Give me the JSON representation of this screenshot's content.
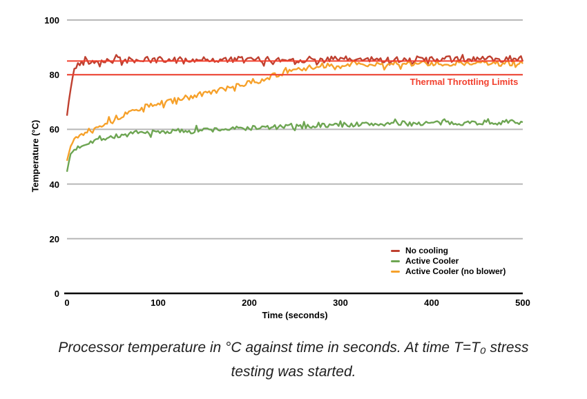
{
  "chart_data": {
    "type": "line",
    "title": "",
    "xlabel": "Time (seconds)",
    "ylabel": "Temperature (°C)",
    "xlim": [
      0,
      500
    ],
    "ylim": [
      0,
      100
    ],
    "x_ticks": [
      0,
      100,
      200,
      300,
      400,
      500
    ],
    "y_ticks": [
      0,
      20,
      40,
      60,
      80,
      100
    ],
    "grid": "horizontal",
    "legend_position": "inside-bottom-right",
    "series": [
      {
        "name": "No cooling",
        "color": "#bf4030",
        "noise": 1.2,
        "points": [
          [
            0,
            65
          ],
          [
            2,
            70
          ],
          [
            4,
            75
          ],
          [
            6,
            79
          ],
          [
            8,
            81.5
          ],
          [
            10,
            83
          ],
          [
            13,
            84
          ],
          [
            16,
            84.5
          ],
          [
            20,
            85
          ],
          [
            30,
            85
          ],
          [
            50,
            85.3
          ],
          [
            100,
            85.4
          ],
          [
            150,
            85.5
          ],
          [
            200,
            85.4
          ],
          [
            250,
            85.5
          ],
          [
            300,
            85.6
          ],
          [
            350,
            85.5
          ],
          [
            400,
            85.6
          ],
          [
            450,
            85.7
          ],
          [
            500,
            86
          ]
        ]
      },
      {
        "name": "Active Cooler",
        "color": "#6da552",
        "noise": 0.9,
        "points": [
          [
            0,
            44.5
          ],
          [
            4,
            51
          ],
          [
            8,
            52.5
          ],
          [
            15,
            54
          ],
          [
            25,
            55.5
          ],
          [
            40,
            56.8
          ],
          [
            60,
            57.8
          ],
          [
            80,
            58.6
          ],
          [
            110,
            59.2
          ],
          [
            140,
            59.7
          ],
          [
            170,
            60
          ],
          [
            200,
            60.5
          ],
          [
            250,
            61
          ],
          [
            300,
            61.7
          ],
          [
            350,
            62
          ],
          [
            400,
            62.3
          ],
          [
            450,
            62.5
          ],
          [
            500,
            62.7
          ]
        ]
      },
      {
        "name": "Active Cooler (no blower)",
        "color": "#f6a12b",
        "noise": 1.0,
        "points": [
          [
            0,
            48.5
          ],
          [
            4,
            54.5
          ],
          [
            8,
            56.5
          ],
          [
            15,
            58
          ],
          [
            25,
            60
          ],
          [
            35,
            61.5
          ],
          [
            50,
            63.5
          ],
          [
            70,
            66.5
          ],
          [
            90,
            68.5
          ],
          [
            110,
            70
          ],
          [
            130,
            71.5
          ],
          [
            150,
            73
          ],
          [
            170,
            74.5
          ],
          [
            190,
            76
          ],
          [
            210,
            77.8
          ],
          [
            230,
            80
          ],
          [
            250,
            81.5
          ],
          [
            265,
            82.5
          ],
          [
            280,
            83.2
          ],
          [
            300,
            83.3
          ],
          [
            320,
            83.8
          ],
          [
            340,
            83.5
          ],
          [
            370,
            84
          ],
          [
            400,
            84
          ],
          [
            430,
            84.2
          ],
          [
            460,
            84
          ],
          [
            500,
            84.3
          ]
        ]
      }
    ],
    "reference_lines": {
      "label": "Thermal Throttling Limits",
      "color": "#f2402e",
      "values": [
        85,
        80
      ]
    }
  },
  "caption": {
    "line1": "Processor temperature in °C against time in seconds. At time T=T₀ stress",
    "line2": "testing was started."
  },
  "colors": {
    "grid": "#b7b7b7",
    "axis": "#000000",
    "background": "#ffffff"
  }
}
